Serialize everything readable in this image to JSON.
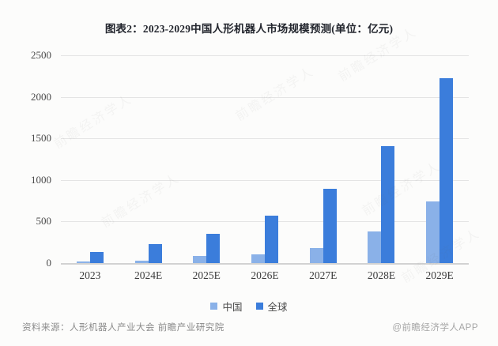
{
  "chart_data": {
    "type": "bar",
    "title": "图表2：2023-2029中国人形机器人市场规模预测(单位：亿元)",
    "categories": [
      "2023",
      "2024E",
      "2025E",
      "2026E",
      "2027E",
      "2028E",
      "2029E"
    ],
    "series": [
      {
        "name": "中国",
        "slug": "china",
        "color": "#8ab1e8",
        "values": [
          20,
          30,
          85,
          100,
          185,
          380,
          740
        ]
      },
      {
        "name": "全球",
        "slug": "global",
        "color": "#3b7ddb",
        "values": [
          130,
          225,
          350,
          570,
          890,
          1410,
          2220
        ]
      }
    ],
    "ylim": [
      0,
      2500
    ],
    "yticks": [
      0,
      500,
      1000,
      1500,
      2000,
      2500
    ],
    "grid": true,
    "legend_position": "bottom"
  },
  "footer": {
    "source": "资料来源：人形机器人产业大会 前瞻产业研究院",
    "credit": "@前瞻经济学人APP"
  },
  "watermark": "前瞻经济学人"
}
